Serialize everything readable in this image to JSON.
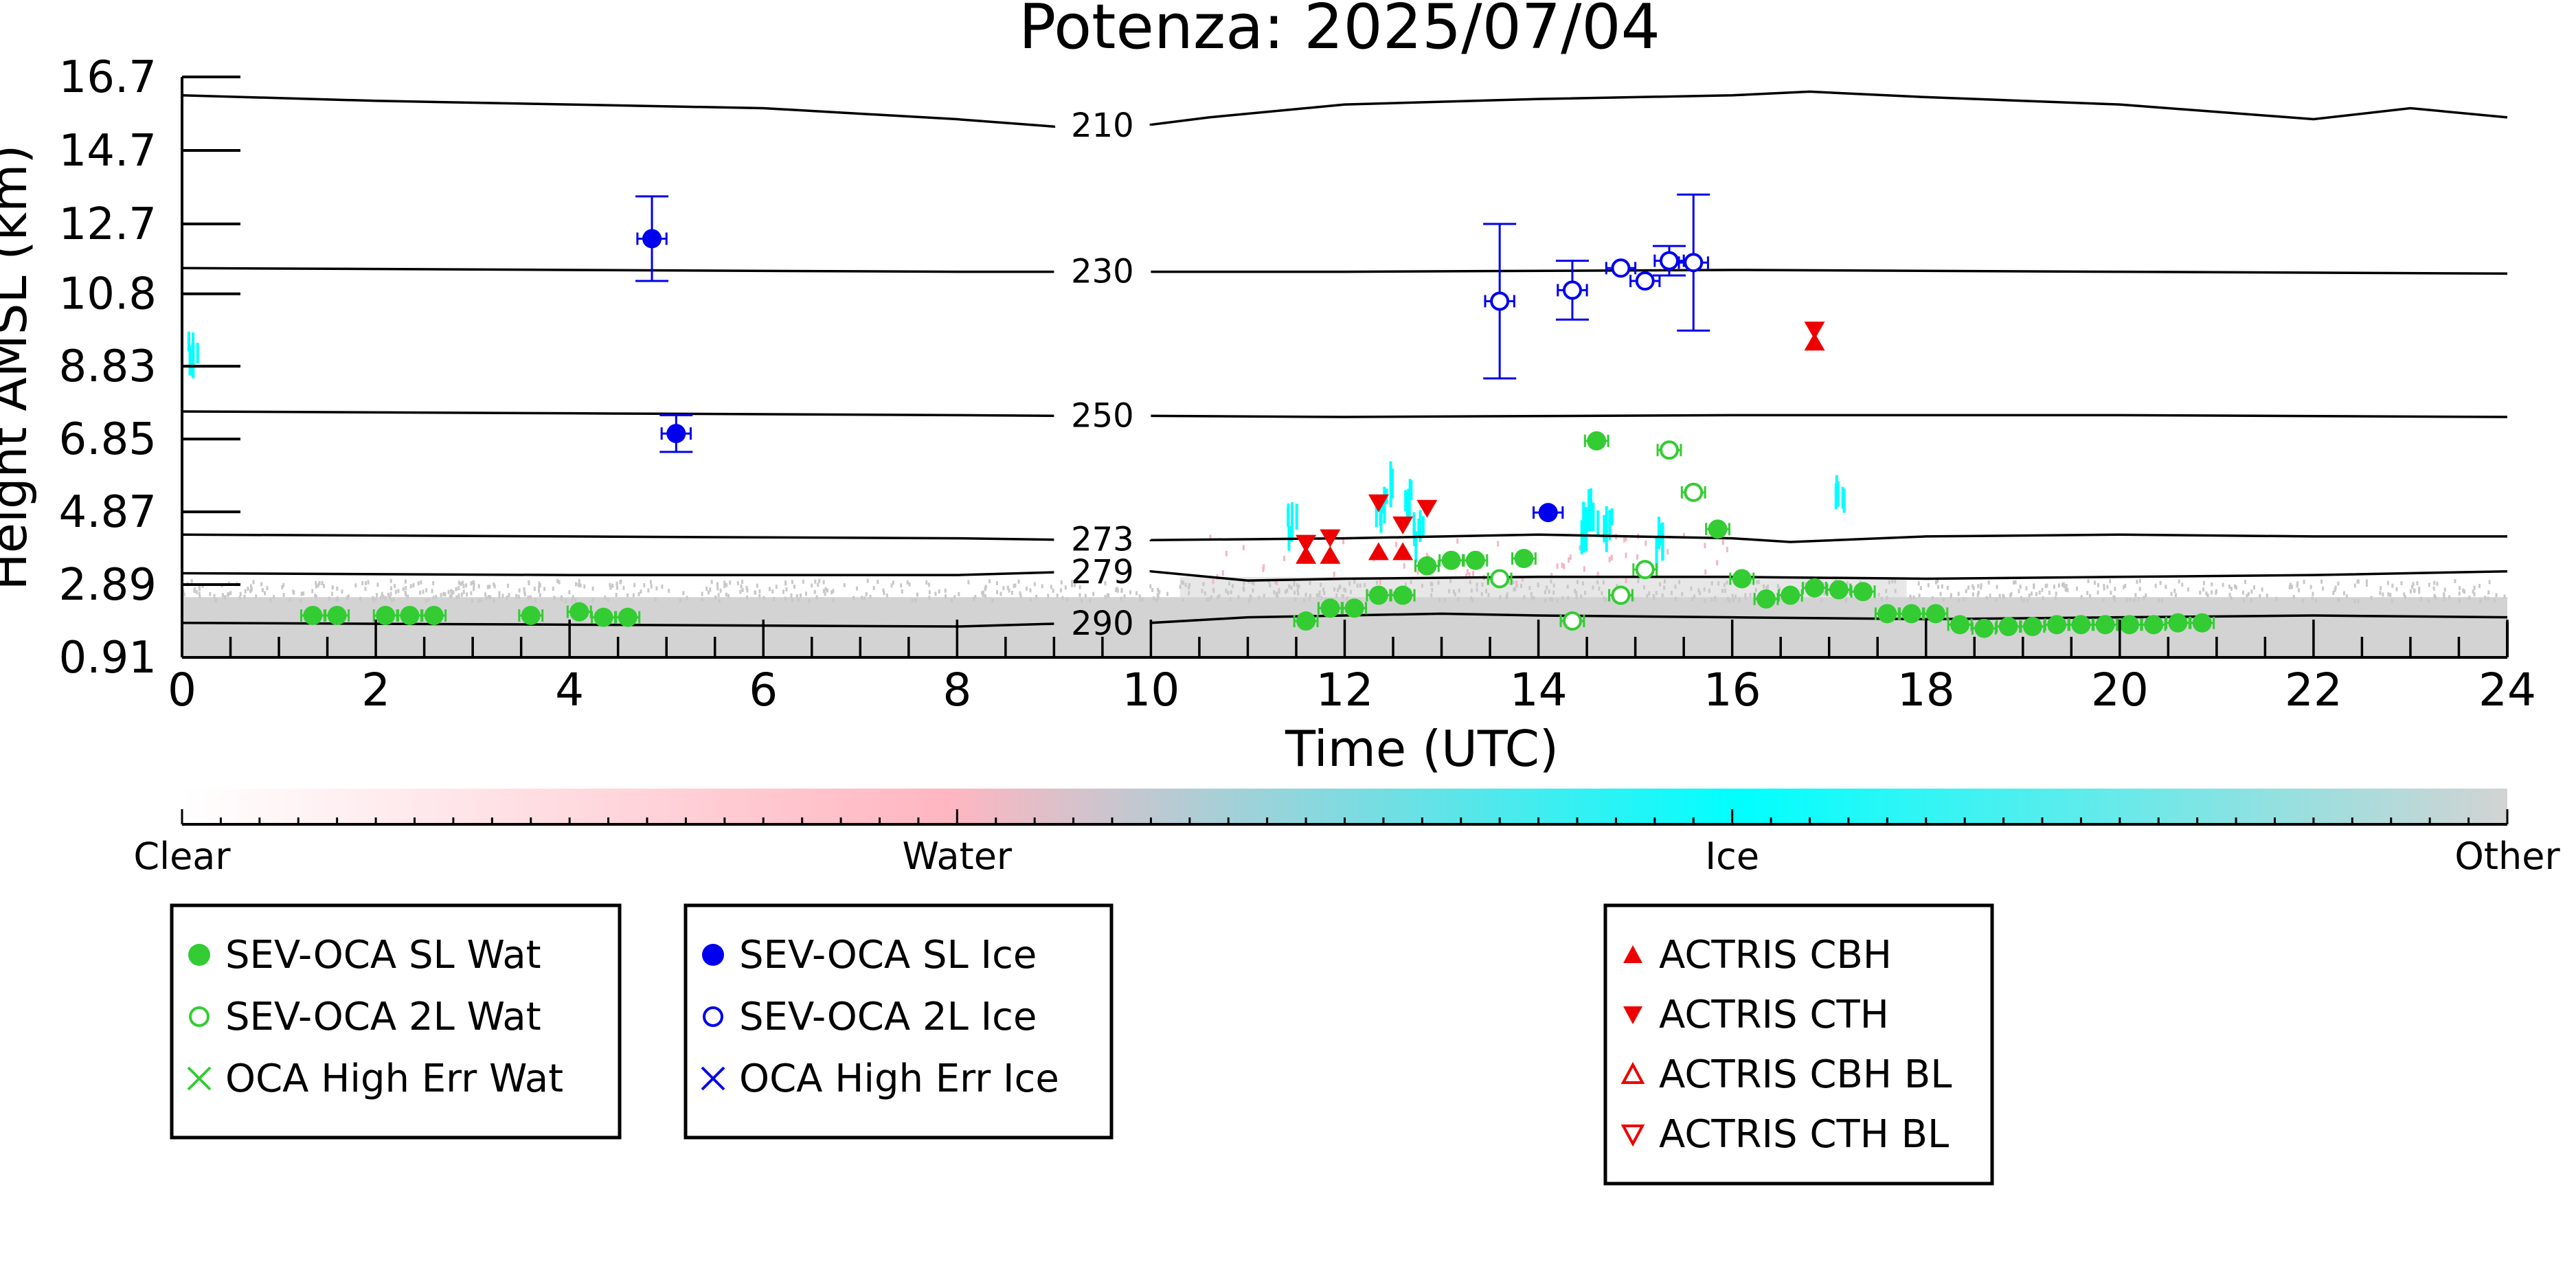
{
  "chart_data": {
    "type": "scatter",
    "title": "Potenza: 2025/07/04",
    "xlabel": "Time (UTC)",
    "ylabel": "Height AMSL (km)",
    "xlim": [
      0,
      24
    ],
    "ylim": [
      0.91,
      16.7
    ],
    "x_ticks": [
      "0",
      "2",
      "4",
      "6",
      "8",
      "10",
      "12",
      "14",
      "16",
      "18",
      "20",
      "22",
      "24"
    ],
    "y_ticks": [
      "0.91",
      "2.89",
      "4.87",
      "6.85",
      "8.83",
      "10.8",
      "12.7",
      "14.7",
      "16.7"
    ],
    "colorbar": {
      "labels": [
        "Clear",
        "Water",
        "Ice",
        "Other"
      ],
      "colors": [
        "#ffffff",
        "#ffb6c1",
        "#00ffff",
        "#d3d3d3"
      ]
    },
    "isotherms": [
      {
        "label": "210",
        "points": [
          [
            0,
            16.2
          ],
          [
            2,
            16.05
          ],
          [
            4,
            15.95
          ],
          [
            6,
            15.85
          ],
          [
            8,
            15.55
          ],
          [
            9,
            15.35
          ],
          [
            10,
            15.4
          ],
          [
            10.6,
            15.6
          ],
          [
            12,
            15.95
          ],
          [
            14,
            16.1
          ],
          [
            16,
            16.2
          ],
          [
            16.8,
            16.3
          ],
          [
            18,
            16.15
          ],
          [
            20,
            15.95
          ],
          [
            22,
            15.55
          ],
          [
            23,
            15.85
          ],
          [
            24,
            15.6
          ]
        ]
      },
      {
        "label": "230",
        "points": [
          [
            0,
            11.5
          ],
          [
            4,
            11.45
          ],
          [
            8,
            11.4
          ],
          [
            12,
            11.4
          ],
          [
            16,
            11.45
          ],
          [
            20,
            11.4
          ],
          [
            24,
            11.35
          ]
        ]
      },
      {
        "label": "250",
        "points": [
          [
            0,
            7.6
          ],
          [
            4,
            7.55
          ],
          [
            8,
            7.5
          ],
          [
            12,
            7.45
          ],
          [
            16,
            7.5
          ],
          [
            20,
            7.5
          ],
          [
            24,
            7.45
          ]
        ]
      },
      {
        "label": "273",
        "points": [
          [
            0,
            4.25
          ],
          [
            4,
            4.2
          ],
          [
            8,
            4.15
          ],
          [
            10,
            4.1
          ],
          [
            12,
            4.15
          ],
          [
            14,
            4.25
          ],
          [
            16,
            4.15
          ],
          [
            16.6,
            4.05
          ],
          [
            18,
            4.2
          ],
          [
            20,
            4.25
          ],
          [
            22,
            4.2
          ],
          [
            24,
            4.2
          ]
        ]
      },
      {
        "label": "279",
        "points": [
          [
            0,
            3.2
          ],
          [
            4,
            3.15
          ],
          [
            8,
            3.15
          ],
          [
            10,
            3.25
          ],
          [
            11,
            3.0
          ],
          [
            12,
            3.05
          ],
          [
            14,
            3.1
          ],
          [
            16,
            3.1
          ],
          [
            18,
            3.05
          ],
          [
            20,
            3.1
          ],
          [
            22,
            3.15
          ],
          [
            24,
            3.25
          ]
        ]
      },
      {
        "label": "290",
        "points": [
          [
            0,
            1.85
          ],
          [
            4,
            1.8
          ],
          [
            8,
            1.75
          ],
          [
            10,
            1.85
          ],
          [
            11,
            2.0
          ],
          [
            12,
            2.05
          ],
          [
            13,
            2.1
          ],
          [
            14,
            2.05
          ],
          [
            16,
            2.0
          ],
          [
            18,
            1.95
          ],
          [
            20,
            2.0
          ],
          [
            22,
            2.05
          ],
          [
            24,
            2.0
          ]
        ]
      }
    ],
    "legend_groups": [
      {
        "placement": "lower-left",
        "entries": [
          "SEV-OCA SL Wat",
          "SEV-OCA 2L Wat",
          "OCA High Err Wat"
        ]
      },
      {
        "placement": "lower-center-left",
        "entries": [
          "SEV-OCA SL Ice",
          "SEV-OCA 2L Ice",
          "OCA High Err Ice"
        ]
      },
      {
        "placement": "lower-right",
        "entries": [
          "ACTRIS CBH",
          "ACTRIS CTH",
          "ACTRIS CBH BL",
          "ACTRIS CTH BL"
        ]
      }
    ],
    "series": [
      {
        "name": "SEV-OCA SL Wat",
        "color": "#33cc33",
        "marker": "filled-circle",
        "points": [
          [
            1.35,
            2.05
          ],
          [
            1.6,
            2.05
          ],
          [
            2.1,
            2.05
          ],
          [
            2.35,
            2.05
          ],
          [
            2.6,
            2.05
          ],
          [
            3.6,
            2.05
          ],
          [
            4.1,
            2.15
          ],
          [
            4.35,
            2.0
          ],
          [
            4.6,
            2.0
          ],
          [
            11.6,
            1.9
          ],
          [
            11.85,
            2.25
          ],
          [
            12.1,
            2.25
          ],
          [
            12.35,
            2.6
          ],
          [
            12.6,
            2.6
          ],
          [
            12.85,
            3.4
          ],
          [
            13.1,
            3.55
          ],
          [
            13.35,
            3.55
          ],
          [
            13.85,
            3.6
          ],
          [
            14.6,
            6.8
          ],
          [
            15.85,
            4.4
          ],
          [
            16.1,
            3.05
          ],
          [
            16.35,
            2.5
          ],
          [
            16.6,
            2.6
          ],
          [
            16.85,
            2.8
          ],
          [
            17.1,
            2.75
          ],
          [
            17.35,
            2.7
          ],
          [
            17.6,
            2.1
          ],
          [
            17.85,
            2.1
          ],
          [
            18.1,
            2.1
          ],
          [
            18.35,
            1.8
          ],
          [
            18.6,
            1.7
          ],
          [
            18.85,
            1.75
          ],
          [
            19.1,
            1.75
          ],
          [
            19.35,
            1.8
          ],
          [
            19.6,
            1.8
          ],
          [
            19.85,
            1.8
          ],
          [
            20.1,
            1.8
          ],
          [
            20.35,
            1.8
          ],
          [
            20.6,
            1.85
          ],
          [
            20.85,
            1.85
          ]
        ],
        "x_err": 0.12
      },
      {
        "name": "SEV-OCA 2L Wat",
        "color": "#33cc33",
        "marker": "open-circle",
        "points": [
          [
            13.6,
            3.05
          ],
          [
            14.35,
            1.9
          ],
          [
            14.85,
            2.6
          ],
          [
            15.1,
            3.3
          ],
          [
            15.35,
            6.55
          ],
          [
            15.6,
            5.4
          ]
        ],
        "x_err": 0.12
      },
      {
        "name": "SEV-OCA SL Ice",
        "color": "#0000ee",
        "marker": "filled-circle",
        "points": [
          [
            4.85,
            12.3,
            1.15
          ],
          [
            5.1,
            7.0,
            0.5
          ],
          [
            14.1,
            4.85,
            0.0
          ]
        ],
        "x_err": 0.15
      },
      {
        "name": "SEV-OCA 2L Ice",
        "color": "#0000ee",
        "marker": "open-circle",
        "points": [
          [
            13.6,
            10.6,
            2.1
          ],
          [
            14.35,
            10.9,
            0.8
          ],
          [
            14.85,
            11.5,
            0.0
          ],
          [
            15.1,
            11.15,
            0.0
          ],
          [
            15.35,
            11.7,
            0.4
          ],
          [
            15.6,
            11.65,
            1.85
          ]
        ],
        "x_err": 0.15
      },
      {
        "name": "ACTRIS CBH",
        "color": "#ee0000",
        "marker": "triangle-up",
        "points": [
          [
            11.6,
            3.7
          ],
          [
            11.85,
            3.7
          ],
          [
            12.35,
            3.8
          ],
          [
            12.6,
            3.8
          ],
          [
            16.85,
            9.5
          ]
        ]
      },
      {
        "name": "ACTRIS CTH",
        "color": "#ee0000",
        "marker": "triangle-down",
        "points": [
          [
            11.6,
            4.0
          ],
          [
            11.85,
            4.15
          ],
          [
            12.35,
            5.1
          ],
          [
            12.6,
            4.5
          ],
          [
            12.85,
            4.95
          ],
          [
            16.85,
            9.8
          ]
        ]
      }
    ],
    "lidar_ice_blobs": [
      [
        11.45,
        4.4
      ],
      [
        12.35,
        4.9
      ],
      [
        12.45,
        5.5
      ],
      [
        12.65,
        5.1
      ],
      [
        12.75,
        4.2
      ],
      [
        14.45,
        4.4
      ],
      [
        14.55,
        4.8
      ],
      [
        14.7,
        4.35
      ],
      [
        15.25,
        4.1
      ],
      [
        17.1,
        5.4
      ],
      [
        0.1,
        9.05
      ]
    ]
  }
}
